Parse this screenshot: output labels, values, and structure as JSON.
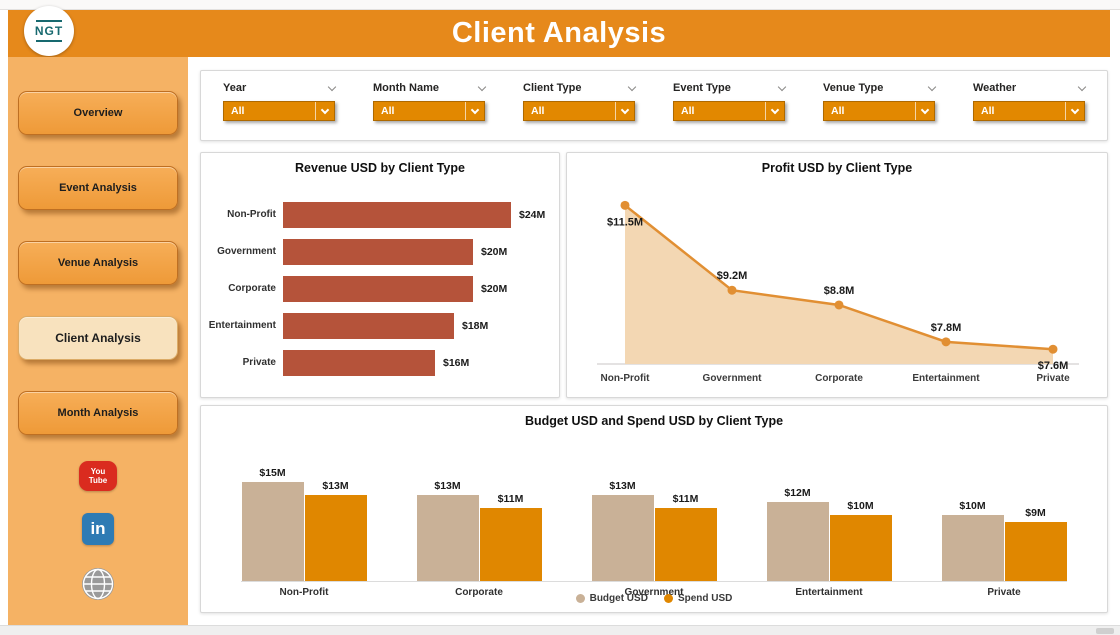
{
  "header": {
    "title": "Client Analysis",
    "logo_text": "NGT"
  },
  "sidebar": {
    "items": [
      {
        "label": "Overview",
        "active": false
      },
      {
        "label": "Event Analysis",
        "active": false
      },
      {
        "label": "Venue Analysis",
        "active": false
      },
      {
        "label": "Client Analysis",
        "active": true
      },
      {
        "label": "Month Analysis",
        "active": false
      }
    ],
    "social": {
      "youtube_line1": "You",
      "youtube_line2": "Tube",
      "linkedin_label": "in"
    }
  },
  "filters": [
    {
      "id": "year",
      "label": "Year",
      "value": "All"
    },
    {
      "id": "month-name",
      "label": "Month Name",
      "value": "All"
    },
    {
      "id": "client-type",
      "label": "Client Type",
      "value": "All"
    },
    {
      "id": "event-type",
      "label": "Event Type",
      "value": "All"
    },
    {
      "id": "venue-type",
      "label": "Venue Type",
      "value": "All"
    },
    {
      "id": "weather",
      "label": "Weather",
      "value": "All"
    }
  ],
  "colors": {
    "header_orange": "#E6891B",
    "sidebar_orange": "#F5B264",
    "slicer_orange": "#E28800",
    "revenue_bar": "#B5533A",
    "profit_line": "#E18F33",
    "profit_fill": "#F3D7B3",
    "budget_bar": "#C9B197",
    "spend_bar": "#E08700"
  },
  "chart_data": [
    {
      "type": "bar",
      "orientation": "horizontal",
      "title": "Revenue USD by Client Type",
      "categories": [
        "Non-Profit",
        "Government",
        "Corporate",
        "Entertainment",
        "Private"
      ],
      "values": [
        24,
        20,
        20,
        18,
        16
      ],
      "labels": [
        "$24M",
        "$20M",
        "$20M",
        "$18M",
        "$16M"
      ],
      "unit": "USD millions",
      "color": "#B5533A"
    },
    {
      "type": "area",
      "title": "Profit USD by Client Type",
      "categories": [
        "Non-Profit",
        "Government",
        "Corporate",
        "Entertainment",
        "Private"
      ],
      "values": [
        11.5,
        9.2,
        8.8,
        7.8,
        7.6
      ],
      "labels": [
        "$11.5M",
        "$9.2M",
        "$8.8M",
        "$7.8M",
        "$7.6M"
      ],
      "label_pos": [
        "below",
        "above",
        "above",
        "above",
        "below"
      ],
      "unit": "USD millions",
      "line_color": "#E18F33",
      "fill_color": "#F3D7B3"
    },
    {
      "type": "bar",
      "orientation": "vertical",
      "title": "Budget USD and Spend USD by Client Type",
      "categories": [
        "Non-Profit",
        "Corporate",
        "Government",
        "Entertainment",
        "Private"
      ],
      "series": [
        {
          "name": "Budget USD",
          "values": [
            15,
            13,
            13,
            12,
            10
          ],
          "labels": [
            "$15M",
            "$13M",
            "$13M",
            "$12M",
            "$10M"
          ],
          "color": "#C9B197"
        },
        {
          "name": "Spend USD",
          "values": [
            13,
            11,
            11,
            10,
            9
          ],
          "labels": [
            "$13M",
            "$11M",
            "$11M",
            "$10M",
            "$9M"
          ],
          "color": "#E08700"
        }
      ],
      "unit": "USD millions",
      "legend_position": "bottom"
    }
  ]
}
